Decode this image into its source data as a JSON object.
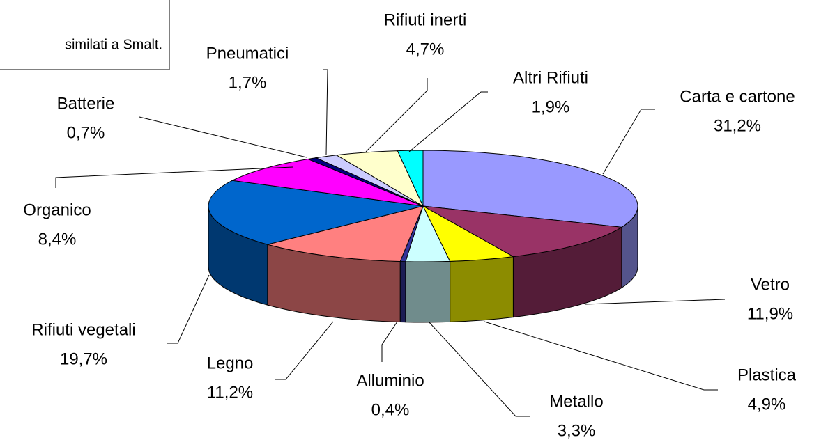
{
  "chart_data": {
    "type": "pie3d",
    "annotation": "similati a Smalt.",
    "categories": [
      "Carta e cartone",
      "Vetro",
      "Plastica",
      "Metallo",
      "Alluminio",
      "Legno",
      "Rifiuti vegetali",
      "Organico",
      "Batterie",
      "Pneumatici",
      "Rifiuti inerti",
      "Altri Rifiuti"
    ],
    "values": [
      31.2,
      11.9,
      4.9,
      3.3,
      0.4,
      11.2,
      19.7,
      8.4,
      0.7,
      1.7,
      4.7,
      1.9
    ],
    "value_labels": [
      "31,2%",
      "11,9%",
      "4,9%",
      "3,3%",
      "0,4%",
      "11,2%",
      "19,7%",
      "8,4%",
      "0,7%",
      "1,7%",
      "4,7%",
      "1,9%"
    ],
    "colors": [
      "#9999ff",
      "#993366",
      "#ffff00",
      "#ccffff",
      "#333399",
      "#ff8080",
      "#0066cc",
      "#ff00ff",
      "#000080",
      "#ccccff",
      "#ffffcc",
      "#00ffff"
    ]
  }
}
